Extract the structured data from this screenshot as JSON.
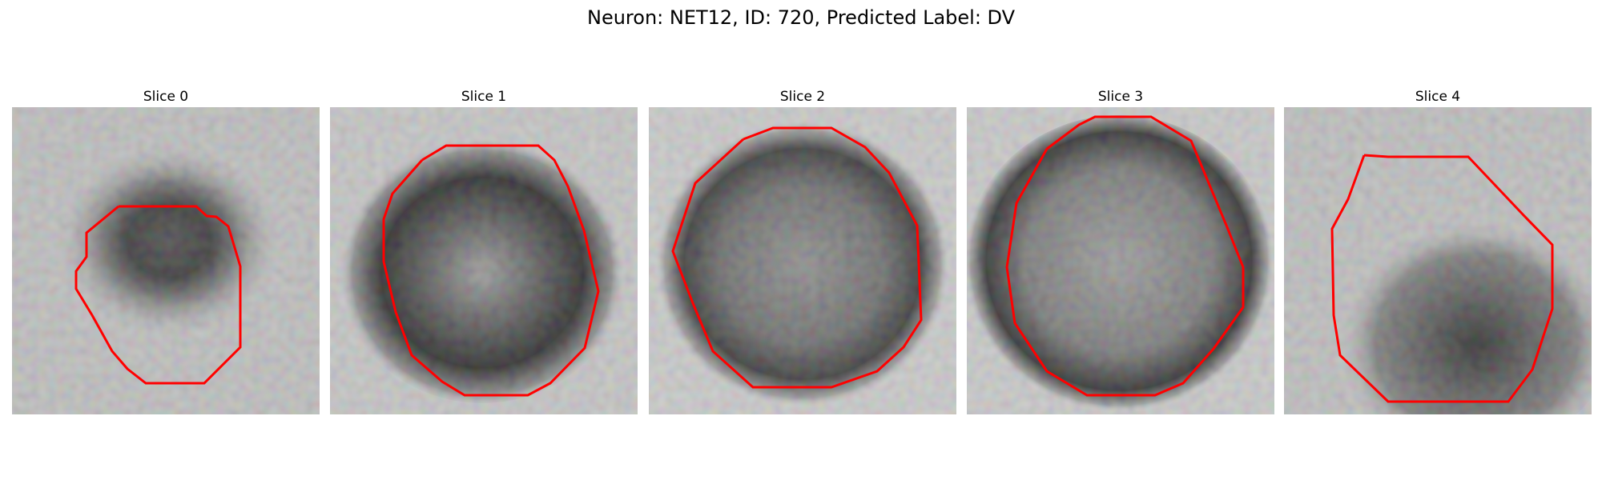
{
  "figure": {
    "title": "Neuron: NET12, ID: 720, Predicted Label: DV"
  },
  "colors": {
    "contour": "#ff0000",
    "background": "#ffffff"
  },
  "panels": [
    {
      "title": "Slice 0"
    },
    {
      "title": "Slice 1"
    },
    {
      "title": "Slice 2"
    },
    {
      "title": "Slice 3"
    },
    {
      "title": "Slice 4"
    }
  ]
}
